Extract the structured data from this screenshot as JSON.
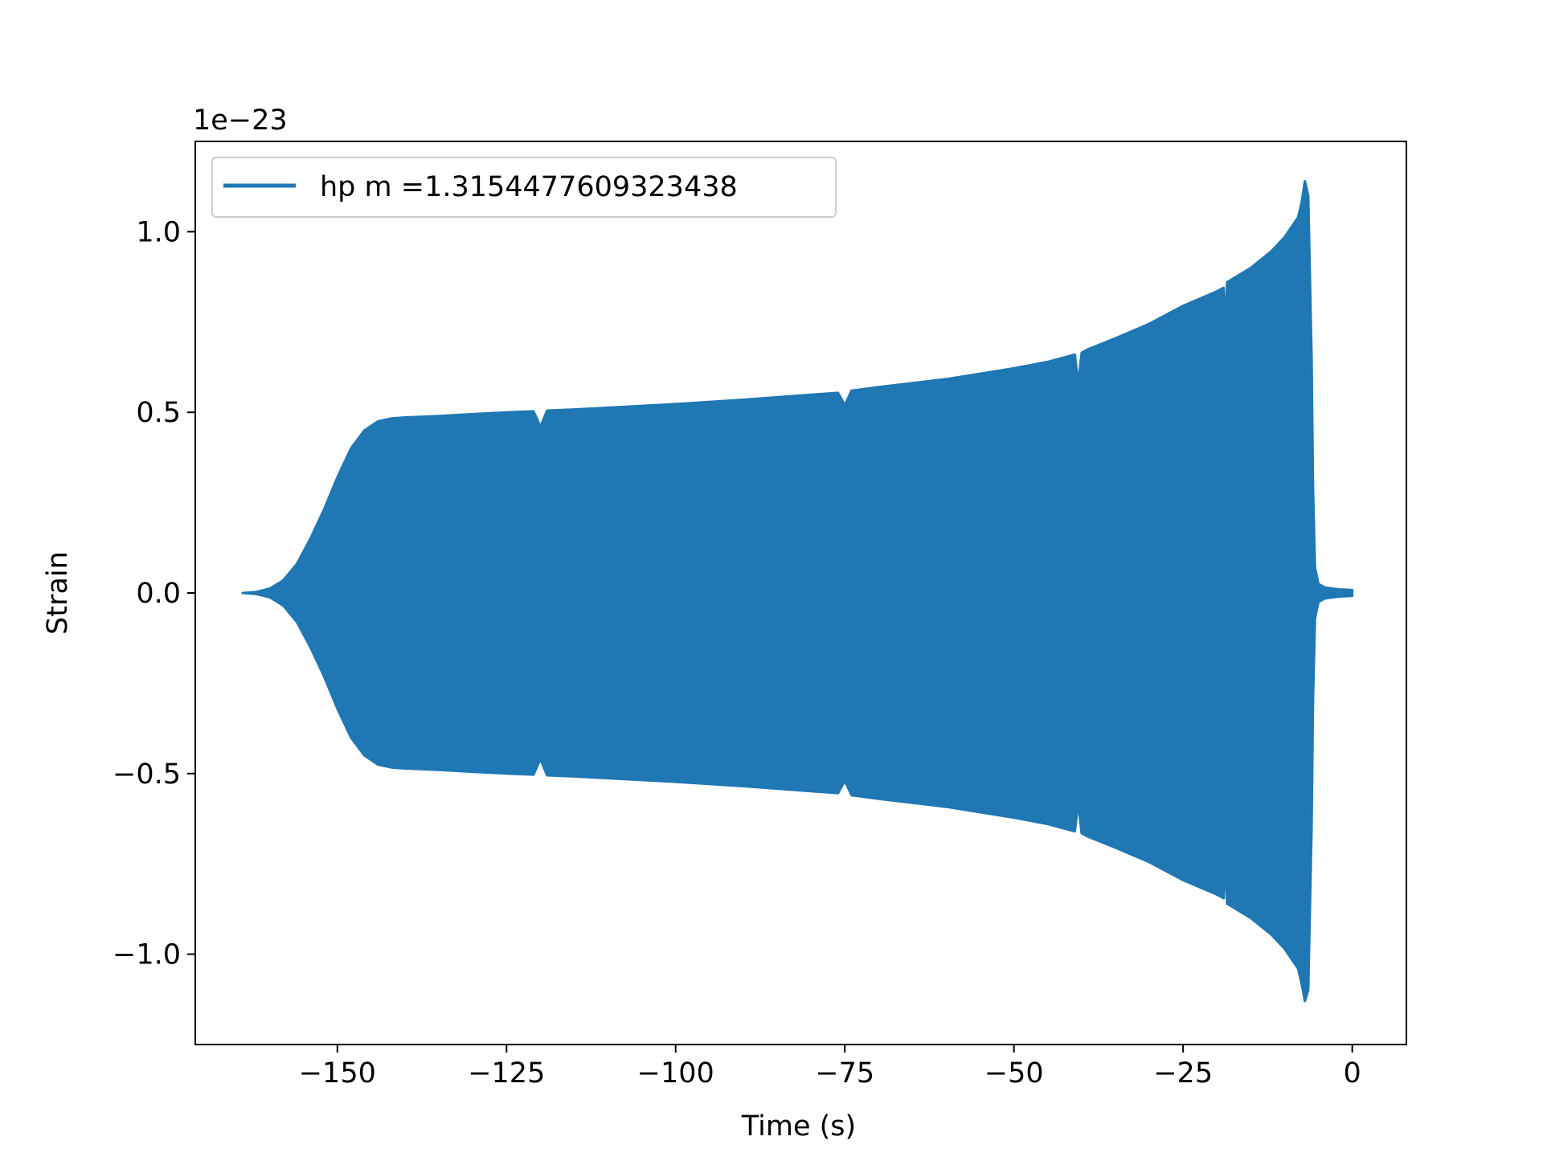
{
  "chart_data": {
    "type": "line",
    "title": "",
    "xlabel": "Time (s)",
    "ylabel": "Strain",
    "y_scale_label": "1e−23",
    "y_scale_factor": 1e-23,
    "xlim": [
      -171,
      8
    ],
    "ylim": [
      -1.25,
      1.25
    ],
    "grid": false,
    "legend_position": "upper-left",
    "x_ticks": [
      {
        "value": -150,
        "label": "−150"
      },
      {
        "value": -125,
        "label": "−125"
      },
      {
        "value": -100,
        "label": "−100"
      },
      {
        "value": -75,
        "label": "−75"
      },
      {
        "value": -50,
        "label": "−50"
      },
      {
        "value": -25,
        "label": "−25"
      },
      {
        "value": 0,
        "label": "0"
      }
    ],
    "y_ticks": [
      {
        "value": 1.0,
        "label": "1.0"
      },
      {
        "value": 0.5,
        "label": "0.5"
      },
      {
        "value": 0.0,
        "label": "0.0"
      },
      {
        "value": -0.5,
        "label": "−0.5"
      },
      {
        "value": -1.0,
        "label": "−1.0"
      }
    ],
    "series": [
      {
        "name": "hp m =1.3154477609323438",
        "color": "#1f77b4",
        "representation": "oscillating strain, drawn as upper/lower envelope (units of 1e-23)",
        "envelope": {
          "x": [
            -164,
            -162,
            -160,
            -158,
            -156,
            -154,
            -152,
            -150,
            -148,
            -146,
            -144,
            -142,
            -140,
            -135,
            -130,
            -125,
            -121,
            -120,
            -119,
            -115,
            -110,
            -100,
            -90,
            -80,
            -76,
            -75,
            -74,
            -70,
            -60,
            -50,
            -45,
            -41,
            -40.5,
            -40,
            -39,
            -35,
            -30,
            -25,
            -20,
            -19,
            -18.8,
            -18.5,
            -15,
            -12,
            -10,
            -8,
            -7.5,
            -7,
            -6.5,
            -6,
            -5.8,
            -5.5,
            -5,
            -4,
            -2,
            0
          ],
          "upper": [
            0.0,
            0.003,
            0.012,
            0.035,
            0.08,
            0.15,
            0.23,
            0.32,
            0.4,
            0.45,
            0.475,
            0.483,
            0.486,
            0.49,
            0.495,
            0.5,
            0.503,
            0.46,
            0.505,
            0.508,
            0.513,
            0.523,
            0.535,
            0.549,
            0.554,
            0.52,
            0.56,
            0.57,
            0.592,
            0.622,
            0.64,
            0.66,
            0.58,
            0.665,
            0.675,
            0.705,
            0.745,
            0.795,
            0.835,
            0.845,
            0.72,
            0.86,
            0.9,
            0.945,
            0.985,
            1.04,
            1.08,
            1.14,
            1.1,
            0.65,
            0.3,
            0.07,
            0.025,
            0.015,
            0.01,
            0.008
          ],
          "lower": [
            0.0,
            -0.003,
            -0.012,
            -0.035,
            -0.08,
            -0.15,
            -0.23,
            -0.32,
            -0.4,
            -0.45,
            -0.475,
            -0.483,
            -0.486,
            -0.49,
            -0.495,
            -0.5,
            -0.503,
            -0.46,
            -0.505,
            -0.508,
            -0.513,
            -0.523,
            -0.535,
            -0.549,
            -0.554,
            -0.52,
            -0.56,
            -0.57,
            -0.592,
            -0.622,
            -0.64,
            -0.66,
            -0.58,
            -0.665,
            -0.675,
            -0.705,
            -0.745,
            -0.795,
            -0.835,
            -0.845,
            -0.72,
            -0.86,
            -0.9,
            -0.945,
            -0.985,
            -1.04,
            -1.08,
            -1.13,
            -1.1,
            -0.65,
            -0.3,
            -0.07,
            -0.025,
            -0.015,
            -0.01,
            -0.008
          ]
        }
      }
    ]
  }
}
